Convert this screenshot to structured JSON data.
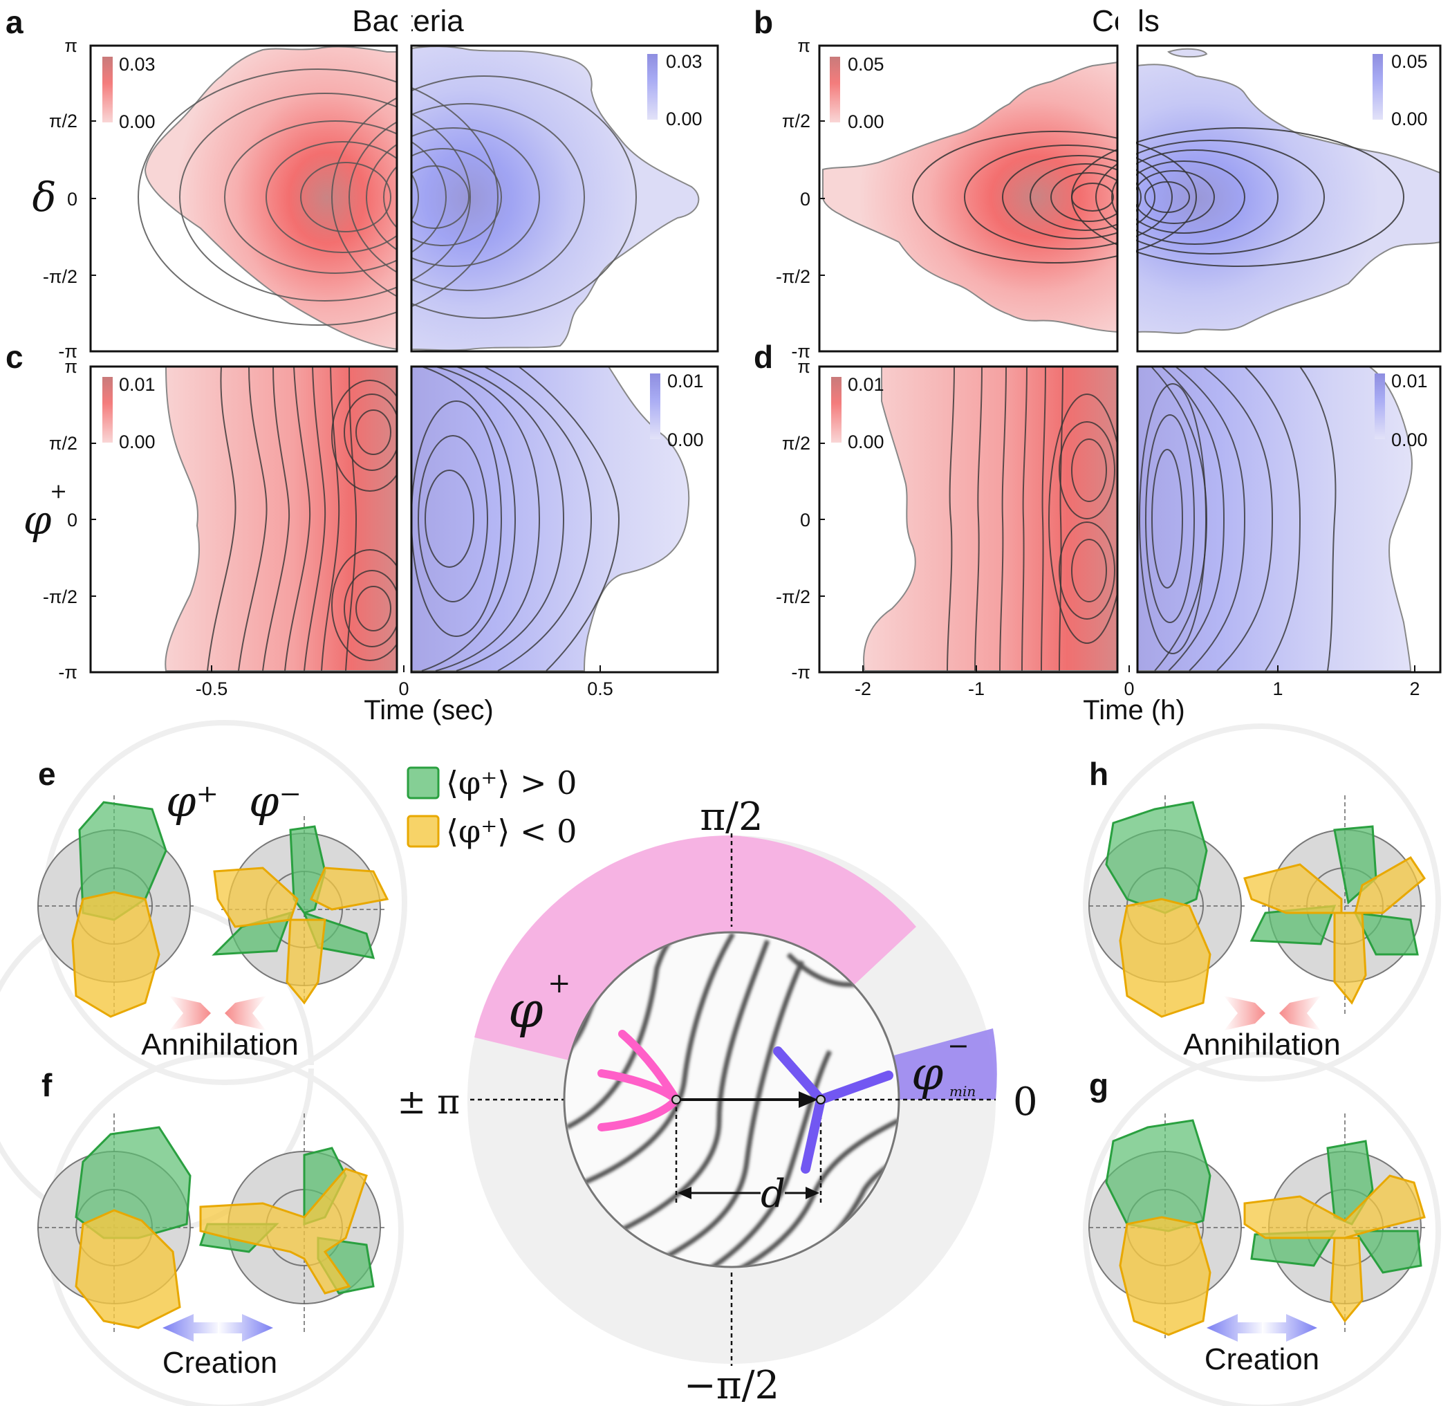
{
  "headers": {
    "bacteria": "Bacteria",
    "cells": "Cells"
  },
  "panel_letters": {
    "a": "a",
    "b": "b",
    "c": "c",
    "d": "d",
    "e": "e",
    "f": "f",
    "g": "g",
    "h": "h"
  },
  "y_labels": {
    "delta": "δ",
    "phi": "φ",
    "phi_sup": "+"
  },
  "y_ticks": [
    "π",
    "π/2",
    "0",
    "-π/2",
    "-π"
  ],
  "x_ticks_bacteria": [
    "-0.5",
    "0",
    "0.5"
  ],
  "x_ticks_cells": [
    "-2",
    "-1",
    "0",
    "1",
    "2"
  ],
  "x_titles": {
    "bacteria": "Time (sec)",
    "cells": "Time (h)"
  },
  "colorbars": {
    "a_red": {
      "max": "0.03",
      "min": "0.00"
    },
    "a_blue": {
      "max": "0.03",
      "min": "0.00"
    },
    "b_red": {
      "max": "0.05",
      "min": "0.00"
    },
    "b_blue": {
      "max": "0.05",
      "min": "0.00"
    },
    "c_red": {
      "max": "0.01",
      "min": "0.00"
    },
    "c_blue": {
      "max": "0.01",
      "min": "0.00"
    },
    "d_red": {
      "max": "0.01",
      "min": "0.00"
    },
    "d_blue": {
      "max": "0.01",
      "min": "0.00"
    }
  },
  "legend": {
    "green": "⟨φ⁺⟩ > 0",
    "yellow": "⟨φ⁺⟩ < 0",
    "green_color": "#5cbf72",
    "yellow_color": "#f5c842"
  },
  "symbols": {
    "phi_plus": "φ⁺",
    "phi_minus": "φ⁻"
  },
  "events": {
    "annihilation": "Annihilation",
    "creation": "Creation"
  },
  "diagram": {
    "top": "π/2",
    "bottom": "−π/2",
    "left": "± π",
    "right": "0",
    "phi_plus": "φ",
    "phi_plus_sup": "+",
    "phi_minus": "φ",
    "phi_minus_sup": "−",
    "phi_minus_sub": "min",
    "distance": "d"
  },
  "colors": {
    "red": "#f26a6a",
    "blue": "#7a7ef0",
    "magenta": "#ff5fc8",
    "violet": "#7257f2",
    "pink_wedge": "#f4a6dd"
  }
}
